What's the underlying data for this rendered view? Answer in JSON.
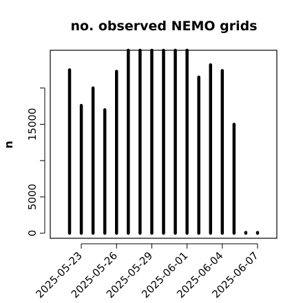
{
  "chart_data": {
    "type": "bar",
    "title": "no. observed NEMO grids",
    "xlabel": "",
    "ylabel": "n",
    "dates": [
      "2025-05-22",
      "2025-05-23",
      "2025-05-24",
      "2025-05-25",
      "2025-05-26",
      "2025-05-27",
      "2025-05-28",
      "2025-05-29",
      "2025-05-30",
      "2025-05-31",
      "2025-06-01",
      "2025-06-02",
      "2025-06-03",
      "2025-06-04",
      "2025-06-05",
      "2025-06-06",
      "2025-06-07"
    ],
    "values": [
      22500,
      17600,
      20000,
      17000,
      22300,
      25500,
      25500,
      25500,
      25500,
      25500,
      25500,
      21500,
      23200,
      22400,
      15000,
      50,
      50
    ],
    "x_ticks": [
      "2025-05-23",
      "2025-05-26",
      "2025-05-29",
      "2025-06-01",
      "2025-06-04",
      "2025-06-07"
    ],
    "y_ticks": [
      0,
      5000,
      15000
    ],
    "ylim": [
      -700,
      25200
    ],
    "grid": false,
    "bar_color": "#000000"
  }
}
